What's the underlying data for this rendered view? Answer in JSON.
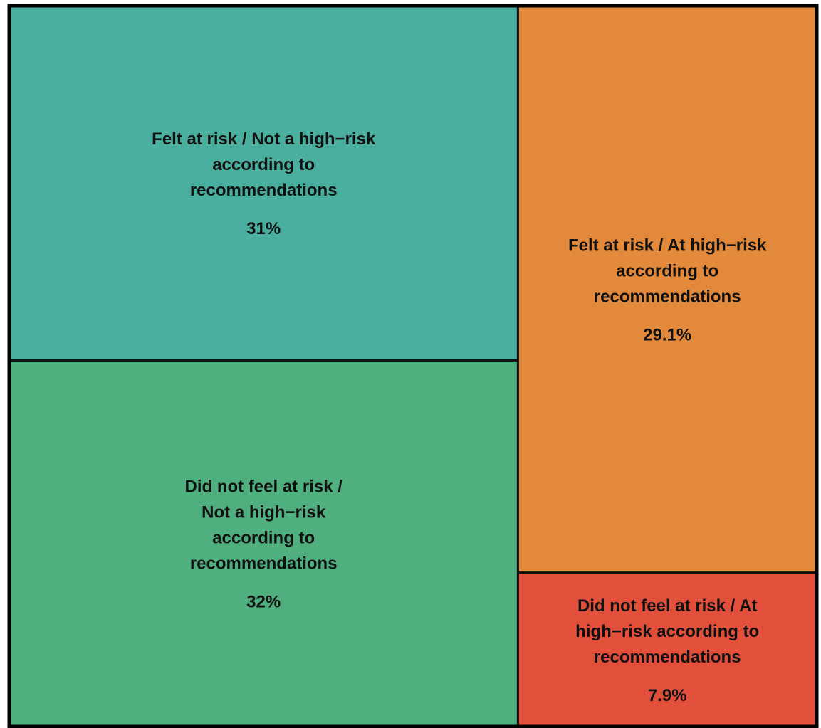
{
  "chart_data": {
    "type": "treemap",
    "title": "",
    "tiles": [
      {
        "name": "felt-at-risk-not-high-risk",
        "label_lines": [
          "Felt at risk / Not a high−risk",
          "according to",
          "recommendations"
        ],
        "value_label": "31%",
        "value": 31,
        "color": "#4aaf9f"
      },
      {
        "name": "did-not-feel-at-risk-not-high-risk",
        "label_lines": [
          "Did not feel at risk /",
          "Not a high−risk",
          "according to",
          "recommendations"
        ],
        "value_label": "32%",
        "value": 32,
        "color": "#4faf7f"
      },
      {
        "name": "felt-at-risk-at-high-risk",
        "label_lines": [
          "Felt at risk / At high−risk",
          "according to",
          "recommendations"
        ],
        "value_label": "29.1%",
        "value": 29.1,
        "color": "#e3893b"
      },
      {
        "name": "did-not-feel-at-risk-at-high-risk",
        "label_lines": [
          "Did not feel at risk / At",
          "high−risk according to",
          "recommendations"
        ],
        "value_label": "7.9%",
        "value": 7.9,
        "color": "#e2503c"
      }
    ]
  }
}
